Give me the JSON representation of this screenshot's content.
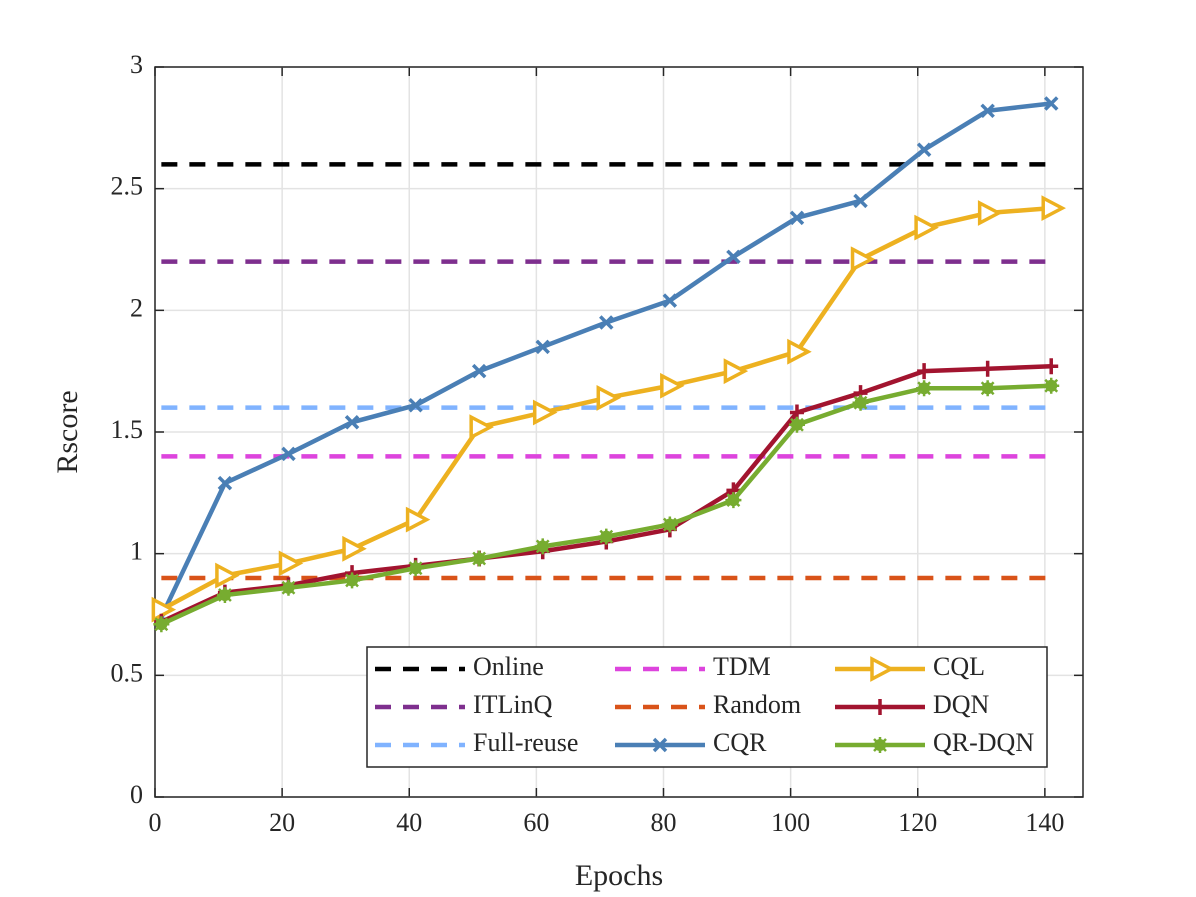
{
  "chart_data": {
    "type": "line",
    "xlabel": "Epochs",
    "ylabel": "Rscore",
    "xlim": [
      0,
      146
    ],
    "ylim": [
      0,
      3
    ],
    "xticks": [
      0,
      20,
      40,
      60,
      80,
      100,
      120,
      140
    ],
    "yticks": [
      0,
      0.5,
      1,
      1.5,
      2,
      2.5,
      3
    ],
    "grid": true,
    "legend": "lower right",
    "legend_columns": 3,
    "series": [
      {
        "name": "Online",
        "color": "#000000",
        "style": "dashed",
        "x": [
          1,
          141
        ],
        "values": [
          2.6,
          2.6
        ]
      },
      {
        "name": "ITLinQ",
        "color": "#7e2f8e",
        "style": "dashed",
        "x": [
          1,
          141
        ],
        "values": [
          2.2,
          2.2
        ]
      },
      {
        "name": "Full-reuse",
        "color": "#80b3ff",
        "style": "dashed",
        "x": [
          1,
          141
        ],
        "values": [
          1.6,
          1.6
        ]
      },
      {
        "name": "TDM",
        "color": "#dd44dd",
        "style": "dashed",
        "x": [
          1,
          141
        ],
        "values": [
          1.4,
          1.4
        ]
      },
      {
        "name": "Random",
        "color": "#d95319",
        "style": "dashed",
        "x": [
          1,
          141
        ],
        "values": [
          0.9,
          0.9
        ]
      },
      {
        "name": "CQR",
        "color": "#4a7fb5",
        "style": "solid",
        "marker": "x",
        "x": [
          1,
          11,
          21,
          31,
          41,
          51,
          61,
          71,
          81,
          91,
          101,
          111,
          121,
          131,
          141
        ],
        "values": [
          0.74,
          1.29,
          1.41,
          1.54,
          1.61,
          1.75,
          1.85,
          1.95,
          2.04,
          2.22,
          2.38,
          2.45,
          2.66,
          2.82,
          2.85
        ]
      },
      {
        "name": "CQL",
        "color": "#edb120",
        "style": "solid",
        "marker": "triangle-right",
        "x": [
          1,
          11,
          21,
          31,
          41,
          51,
          61,
          71,
          81,
          91,
          101,
          111,
          121,
          131,
          141
        ],
        "values": [
          0.77,
          0.91,
          0.96,
          1.02,
          1.14,
          1.52,
          1.58,
          1.64,
          1.69,
          1.75,
          1.83,
          2.21,
          2.34,
          2.4,
          2.42
        ]
      },
      {
        "name": "DQN",
        "color": "#a2142f",
        "style": "solid",
        "marker": "plus",
        "x": [
          1,
          11,
          21,
          31,
          41,
          51,
          61,
          71,
          81,
          91,
          101,
          111,
          121,
          131,
          141
        ],
        "values": [
          0.72,
          0.84,
          0.87,
          0.92,
          0.95,
          0.98,
          1.01,
          1.05,
          1.1,
          1.26,
          1.58,
          1.66,
          1.75,
          1.76,
          1.77
        ]
      },
      {
        "name": "QR-DQN",
        "color": "#77ac30",
        "style": "solid",
        "marker": "asterisk",
        "x": [
          1,
          11,
          21,
          31,
          41,
          51,
          61,
          71,
          81,
          91,
          101,
          111,
          121,
          131,
          141
        ],
        "values": [
          0.71,
          0.83,
          0.86,
          0.89,
          0.94,
          0.98,
          1.03,
          1.07,
          1.12,
          1.22,
          1.53,
          1.62,
          1.68,
          1.68,
          1.69
        ]
      }
    ]
  }
}
